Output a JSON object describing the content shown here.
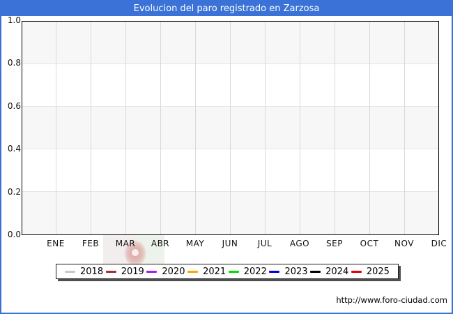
{
  "header": {
    "title": "Evolucion del paro registrado en Zarzosa"
  },
  "watermark": {
    "url": "http://www.foro-ciudad.com"
  },
  "colors": {
    "titlebar_bg": "#3a72d8",
    "frame_border": "#3a72d8",
    "band_light": "#f7f7f7",
    "band_white": "#ffffff",
    "vgrid": "#d9d9d9",
    "hgrid": "#e6e6e6",
    "plot_border": "#000000"
  },
  "chart_data": {
    "type": "line",
    "title": "Evolucion del paro registrado en Zarzosa",
    "xlabel": "",
    "ylabel": "",
    "categories": [
      "ENE",
      "FEB",
      "MAR",
      "ABR",
      "MAY",
      "JUN",
      "JUL",
      "AGO",
      "SEP",
      "OCT",
      "NOV",
      "DIC"
    ],
    "yticks": [
      "1.0",
      "0.8",
      "0.6",
      "0.4",
      "0.2",
      "0.0"
    ],
    "ylim": [
      0.0,
      1.0
    ],
    "grid": true,
    "legend_position": "bottom",
    "series": [
      {
        "name": "2018",
        "color": "#c8c8c8",
        "values": []
      },
      {
        "name": "2019",
        "color": "#9e3232",
        "values": []
      },
      {
        "name": "2020",
        "color": "#a020f0",
        "values": []
      },
      {
        "name": "2021",
        "color": "#ffa500",
        "values": []
      },
      {
        "name": "2022",
        "color": "#00dd00",
        "values": []
      },
      {
        "name": "2023",
        "color": "#0000e6",
        "values": []
      },
      {
        "name": "2024",
        "color": "#000000",
        "values": []
      },
      {
        "name": "2025",
        "color": "#e60000",
        "values": []
      }
    ]
  }
}
